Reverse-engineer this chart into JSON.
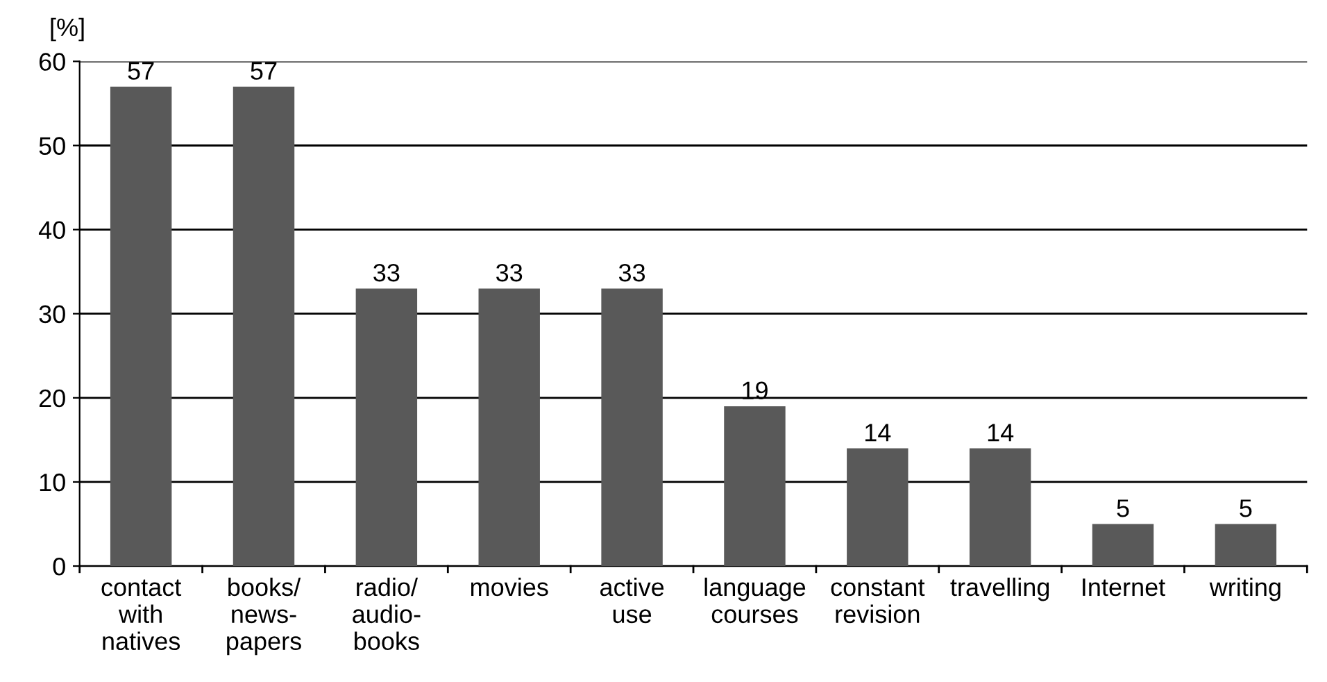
{
  "chart_data": {
    "type": "bar",
    "ylabel": "[%]",
    "categories": [
      "contact\nwith\nnatives",
      "books/\nnews-\npapers",
      "radio/\naudio-\nbooks",
      "movies",
      "active\nuse",
      "language\ncourses",
      "constant\nrevision",
      "travelling",
      "Internet",
      "writing"
    ],
    "values": [
      57,
      57,
      33,
      33,
      33,
      19,
      14,
      14,
      5,
      5
    ],
    "color": "#595959",
    "ylim": [
      0,
      60
    ],
    "yticks": [
      0,
      10,
      20,
      30,
      40,
      50,
      60
    ],
    "grid": "y",
    "data_labels": true
  }
}
